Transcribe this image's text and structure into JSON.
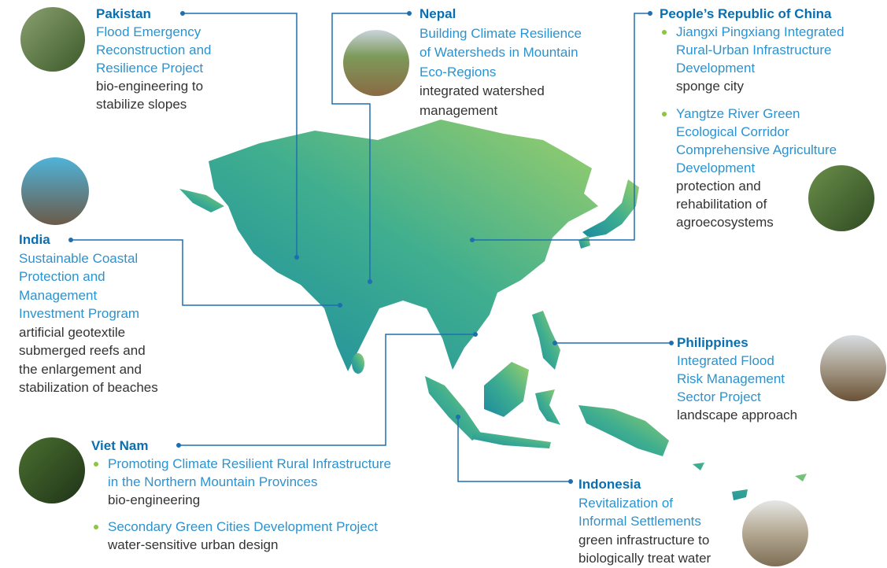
{
  "regions": [
    {
      "country": "Pakistan",
      "projects": [
        {
          "title": [
            "Flood Emergency",
            "Reconstruction and",
            "Resilience Project"
          ],
          "description": [
            "bio-engineering to",
            "stabilize slopes"
          ]
        }
      ]
    },
    {
      "country": "Nepal",
      "projects": [
        {
          "title": [
            "Building Climate Resilience",
            "of Watersheds in Mountain",
            "Eco-Regions"
          ],
          "description": [
            "integrated watershed",
            "management"
          ]
        }
      ]
    },
    {
      "country": "People’s Republic of China",
      "projects": [
        {
          "title": [
            "Jiangxi Pingxiang Integrated",
            "Rural-Urban Infrastructure",
            "Development"
          ],
          "description": [
            "sponge city"
          ]
        },
        {
          "title": [
            "Yangtze River Green",
            "Ecological Corridor",
            "Comprehensive Agriculture",
            "Development"
          ],
          "description": [
            "protection and",
            "rehabilitation of",
            "agroecosystems"
          ]
        }
      ]
    },
    {
      "country": "India",
      "projects": [
        {
          "title": [
            "Sustainable Coastal",
            "Protection and",
            "Management",
            "Investment Program"
          ],
          "description": [
            "artificial geotextile",
            "submerged reefs and",
            "the enlargement and",
            "stabilization of beaches"
          ]
        }
      ]
    },
    {
      "country": "Viet Nam",
      "projects": [
        {
          "title": [
            "Promoting Climate Resilient Rural Infrastructure",
            "in the Northern Mountain Provinces"
          ],
          "description": [
            "bio-engineering"
          ]
        },
        {
          "title": [
            "Secondary Green Cities Development Project"
          ],
          "description": [
            "water-sensitive urban design"
          ]
        }
      ]
    },
    {
      "country": "Philippines",
      "projects": [
        {
          "title": [
            "Integrated Flood",
            "Risk Management",
            "Sector Project"
          ],
          "description": [
            "landscape approach"
          ]
        }
      ]
    },
    {
      "country": "Indonesia",
      "projects": [
        {
          "title": [
            "Revitalization of",
            "Informal Settlements"
          ],
          "description": [
            "green infrastructure to",
            "biologically treat water"
          ]
        }
      ]
    }
  ]
}
